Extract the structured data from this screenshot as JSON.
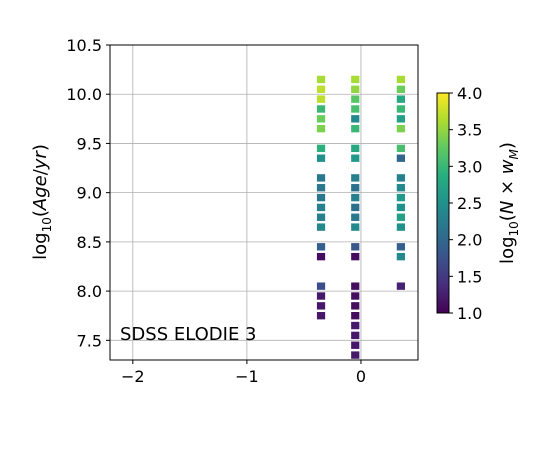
{
  "chart_data": {
    "type": "heatmap",
    "annotation": "SDSS ELODIE 3",
    "xlim": [
      -2.2,
      0.5
    ],
    "ylim": [
      7.3,
      10.5
    ],
    "x_ticks": [
      {
        "value": -2,
        "label": "−2"
      },
      {
        "value": -1,
        "label": "−1"
      },
      {
        "value": 0,
        "label": "0"
      }
    ],
    "y_ticks": [
      {
        "value": 7.5,
        "label": "7.5"
      },
      {
        "value": 8.0,
        "label": "8.0"
      },
      {
        "value": 8.5,
        "label": "8.5"
      },
      {
        "value": 9.0,
        "label": "9.0"
      },
      {
        "value": 9.5,
        "label": "9.5"
      },
      {
        "value": 10.0,
        "label": "10.0"
      },
      {
        "value": 10.5,
        "label": "10.5"
      }
    ],
    "grid": true,
    "colorbar": {
      "colormap": "viridis",
      "range": [
        1.0,
        4.0
      ],
      "ticks": [
        {
          "value": 1.0,
          "label": "1.0"
        },
        {
          "value": 1.5,
          "label": "1.5"
        },
        {
          "value": 2.0,
          "label": "2.0"
        },
        {
          "value": 2.5,
          "label": "2.5"
        },
        {
          "value": 3.0,
          "label": "3.0"
        },
        {
          "value": 3.5,
          "label": "3.5"
        },
        {
          "value": 4.0,
          "label": "4.0"
        }
      ]
    },
    "columns": [
      {
        "x": -0.35,
        "cells": [
          {
            "y": 10.15,
            "value": 3.6
          },
          {
            "y": 10.05,
            "value": 3.7
          },
          {
            "y": 9.95,
            "value": 3.7
          },
          {
            "y": 9.85,
            "value": 3.0
          },
          {
            "y": 9.75,
            "value": 3.3
          },
          {
            "y": 9.65,
            "value": 3.4
          },
          {
            "y": 9.45,
            "value": 2.9
          },
          {
            "y": 9.35,
            "value": 2.5
          },
          {
            "y": 9.15,
            "value": 2.2
          },
          {
            "y": 9.05,
            "value": 2.2
          },
          {
            "y": 8.95,
            "value": 2.2
          },
          {
            "y": 8.85,
            "value": 2.3
          },
          {
            "y": 8.75,
            "value": 2.3
          },
          {
            "y": 8.65,
            "value": 2.4
          },
          {
            "y": 8.45,
            "value": 1.9
          },
          {
            "y": 8.35,
            "value": 1.1
          },
          {
            "y": 8.05,
            "value": 1.7
          },
          {
            "y": 7.95,
            "value": 1.2
          },
          {
            "y": 7.85,
            "value": 1.2
          },
          {
            "y": 7.75,
            "value": 1.2
          }
        ]
      },
      {
        "x": -0.05,
        "cells": [
          {
            "y": 10.15,
            "value": 3.6
          },
          {
            "y": 10.05,
            "value": 3.5
          },
          {
            "y": 9.95,
            "value": 3.2
          },
          {
            "y": 9.85,
            "value": 3.1
          },
          {
            "y": 9.75,
            "value": 2.4
          },
          {
            "y": 9.65,
            "value": 3.0
          },
          {
            "y": 9.45,
            "value": 2.8
          },
          {
            "y": 9.35,
            "value": 2.6
          },
          {
            "y": 9.15,
            "value": 2.3
          },
          {
            "y": 9.05,
            "value": 2.1
          },
          {
            "y": 8.95,
            "value": 2.3
          },
          {
            "y": 8.85,
            "value": 2.1
          },
          {
            "y": 8.75,
            "value": 2.2
          },
          {
            "y": 8.65,
            "value": 2.4
          },
          {
            "y": 8.45,
            "value": 1.8
          },
          {
            "y": 8.35,
            "value": 1.1
          },
          {
            "y": 8.05,
            "value": 1.1
          },
          {
            "y": 7.95,
            "value": 1.1
          },
          {
            "y": 7.85,
            "value": 1.1
          },
          {
            "y": 7.75,
            "value": 1.1
          },
          {
            "y": 7.65,
            "value": 1.2
          },
          {
            "y": 7.55,
            "value": 1.2
          },
          {
            "y": 7.45,
            "value": 1.2
          },
          {
            "y": 7.35,
            "value": 1.2
          }
        ]
      },
      {
        "x": 0.35,
        "cells": [
          {
            "y": 10.15,
            "value": 3.6
          },
          {
            "y": 10.05,
            "value": 3.3
          },
          {
            "y": 9.95,
            "value": 2.8
          },
          {
            "y": 9.85,
            "value": 3.0
          },
          {
            "y": 9.75,
            "value": 2.7
          },
          {
            "y": 9.65,
            "value": 3.4
          },
          {
            "y": 9.45,
            "value": 3.1
          },
          {
            "y": 9.35,
            "value": 2.0
          },
          {
            "y": 9.15,
            "value": 2.3
          },
          {
            "y": 9.05,
            "value": 2.4
          },
          {
            "y": 8.95,
            "value": 2.6
          },
          {
            "y": 8.85,
            "value": 2.5
          },
          {
            "y": 8.75,
            "value": 2.7
          },
          {
            "y": 8.65,
            "value": 2.5
          },
          {
            "y": 8.45,
            "value": 1.9
          },
          {
            "y": 8.35,
            "value": 2.4
          },
          {
            "y": 8.05,
            "value": 1.3
          }
        ]
      }
    ],
    "cell_size": {
      "dx": 0.072,
      "dy": 0.075
    }
  }
}
